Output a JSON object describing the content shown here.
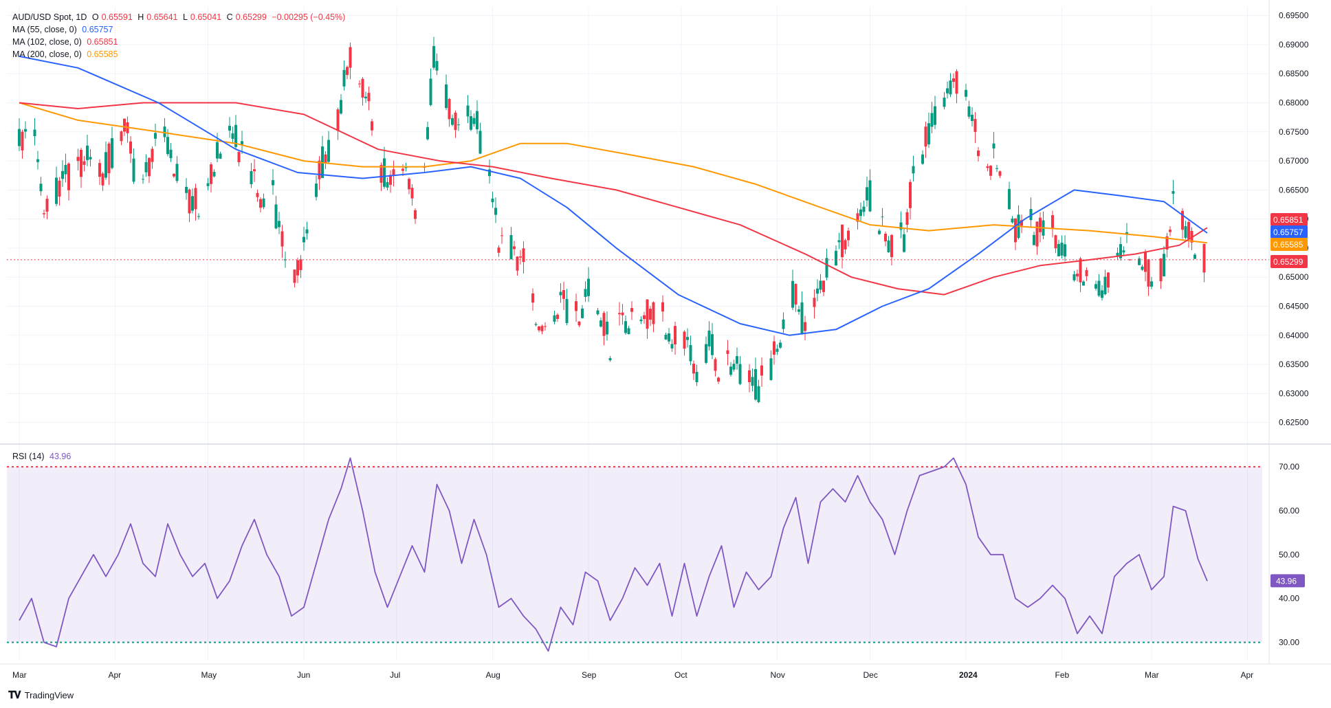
{
  "header": {
    "symbol": "AUD/USD Spot, 1D",
    "open_label": "O",
    "open": "0.65591",
    "high_label": "H",
    "high": "0.65641",
    "low_label": "L",
    "low": "0.65041",
    "close_label": "C",
    "close": "0.65299",
    "change": "−0.00295 (−0.45%)"
  },
  "indicators": {
    "ma55": {
      "label": "MA (55, close, 0)",
      "value": "0.65757",
      "color": "#2962ff"
    },
    "ma102": {
      "label": "MA (102, close, 0)",
      "value": "0.65851",
      "color": "#f23645"
    },
    "ma200": {
      "label": "MA (200, close, 0)",
      "value": "0.65585",
      "color": "#ff9800"
    },
    "rsi": {
      "label": "RSI (14)",
      "value": "43.96",
      "color": "#7e57c2"
    }
  },
  "brand": {
    "name": "TradingView"
  },
  "colors": {
    "up": "#089981",
    "down": "#f23645",
    "grid": "#f0f3fa",
    "axis_text": "#131722"
  },
  "chart_data": [
    {
      "type": "candlestick",
      "title": "AUD/USD Spot, 1D",
      "ylim": [
        0.622,
        0.6965
      ],
      "y_ticks": [
        "0.69500",
        "0.69000",
        "0.68500",
        "0.68000",
        "0.67500",
        "0.67000",
        "0.66500",
        "0.66000",
        "0.65500",
        "0.65000",
        "0.64500",
        "0.64000",
        "0.63500",
        "0.63000",
        "0.62500"
      ],
      "x_ticks": [
        "Mar",
        "Apr",
        "May",
        "Jun",
        "Jul",
        "Aug",
        "Sep",
        "Oct",
        "Nov",
        "Dec",
        "2024",
        "Feb",
        "Mar",
        "Apr"
      ],
      "price_labels": [
        {
          "name": "MA 102",
          "value": "0.65851",
          "color": "#f23645"
        },
        {
          "name": "MA 55",
          "value": "0.65757",
          "color": "#2962ff"
        },
        {
          "name": "MA 200",
          "value": "0.65585",
          "color": "#ff9800"
        },
        {
          "name": "Last",
          "value": "0.65299",
          "color": "#f23645"
        }
      ],
      "close_path": [
        [
          "2023-03-01",
          0.673
        ],
        [
          "2023-03-05",
          0.676
        ],
        [
          "2023-03-09",
          0.662
        ],
        [
          "2023-03-14",
          0.665
        ],
        [
          "2023-03-18",
          0.668
        ],
        [
          "2023-03-23",
          0.67
        ],
        [
          "2023-03-28",
          0.668
        ],
        [
          "2023-04-01",
          0.672
        ],
        [
          "2023-04-04",
          0.678
        ],
        [
          "2023-04-08",
          0.665
        ],
        [
          "2023-04-12",
          0.67
        ],
        [
          "2023-04-16",
          0.676
        ],
        [
          "2023-04-20",
          0.67
        ],
        [
          "2023-04-24",
          0.664
        ],
        [
          "2023-04-28",
          0.662
        ],
        [
          "2023-05-02",
          0.668
        ],
        [
          "2023-05-06",
          0.675
        ],
        [
          "2023-05-10",
          0.674
        ],
        [
          "2023-05-14",
          0.668
        ],
        [
          "2023-05-18",
          0.664
        ],
        [
          "2023-05-22",
          0.664
        ],
        [
          "2023-05-26",
          0.652
        ],
        [
          "2023-05-31",
          0.652
        ],
        [
          "2023-06-03",
          0.66
        ],
        [
          "2023-06-07",
          0.67
        ],
        [
          "2023-06-11",
          0.674
        ],
        [
          "2023-06-15",
          0.687
        ],
        [
          "2023-06-18",
          0.686
        ],
        [
          "2023-06-22",
          0.68
        ],
        [
          "2023-06-26",
          0.668
        ],
        [
          "2023-06-30",
          0.666
        ],
        [
          "2023-07-04",
          0.67
        ],
        [
          "2023-07-07",
          0.662
        ],
        [
          "2023-07-10",
          0.67
        ],
        [
          "2023-07-13",
          0.688
        ],
        [
          "2023-07-17",
          0.681
        ],
        [
          "2023-07-21",
          0.676
        ],
        [
          "2023-07-26",
          0.678
        ],
        [
          "2023-07-30",
          0.67
        ],
        [
          "2023-08-03",
          0.656
        ],
        [
          "2023-08-07",
          0.656
        ],
        [
          "2023-08-11",
          0.652
        ],
        [
          "2023-08-15",
          0.644
        ],
        [
          "2023-08-19",
          0.642
        ],
        [
          "2023-08-23",
          0.646
        ],
        [
          "2023-08-27",
          0.642
        ],
        [
          "2023-08-31",
          0.647
        ],
        [
          "2023-09-04",
          0.646
        ],
        [
          "2023-09-08",
          0.638
        ],
        [
          "2023-09-12",
          0.642
        ],
        [
          "2023-09-16",
          0.644
        ],
        [
          "2023-09-20",
          0.644
        ],
        [
          "2023-09-24",
          0.645
        ],
        [
          "2023-09-28",
          0.639
        ],
        [
          "2023-10-02",
          0.64
        ],
        [
          "2023-10-06",
          0.633
        ],
        [
          "2023-10-10",
          0.639
        ],
        [
          "2023-10-14",
          0.633
        ],
        [
          "2023-10-18",
          0.636
        ],
        [
          "2023-10-22",
          0.632
        ],
        [
          "2023-10-26",
          0.631
        ],
        [
          "2023-10-30",
          0.635
        ],
        [
          "2023-11-03",
          0.642
        ],
        [
          "2023-11-07",
          0.648
        ],
        [
          "2023-11-11",
          0.638
        ],
        [
          "2023-11-15",
          0.649
        ],
        [
          "2023-11-19",
          0.654
        ],
        [
          "2023-11-23",
          0.657
        ],
        [
          "2023-11-27",
          0.66
        ],
        [
          "2023-12-01",
          0.664
        ],
        [
          "2023-12-04",
          0.66
        ],
        [
          "2023-12-08",
          0.656
        ],
        [
          "2023-12-12",
          0.657
        ],
        [
          "2023-12-16",
          0.67
        ],
        [
          "2023-12-20",
          0.674
        ],
        [
          "2023-12-24",
          0.68
        ],
        [
          "2023-12-28",
          0.684
        ],
        [
          "2024-01-01",
          0.682
        ],
        [
          "2024-01-05",
          0.672
        ],
        [
          "2024-01-09",
          0.67
        ],
        [
          "2024-01-13",
          0.67
        ],
        [
          "2024-01-17",
          0.659
        ],
        [
          "2024-01-21",
          0.659
        ],
        [
          "2024-01-25",
          0.658
        ],
        [
          "2024-01-29",
          0.659
        ],
        [
          "2024-02-02",
          0.654
        ],
        [
          "2024-02-06",
          0.651
        ],
        [
          "2024-02-10",
          0.652
        ],
        [
          "2024-02-14",
          0.648
        ],
        [
          "2024-02-18",
          0.654
        ],
        [
          "2024-02-22",
          0.656
        ],
        [
          "2024-02-26",
          0.655
        ],
        [
          "2024-03-01",
          0.65
        ],
        [
          "2024-03-05",
          0.653
        ],
        [
          "2024-03-08",
          0.662
        ],
        [
          "2024-03-12",
          0.659
        ],
        [
          "2024-03-15",
          0.656
        ],
        [
          "2024-03-19",
          0.653
        ]
      ],
      "ma55": [
        [
          "2023-03-01",
          0.688
        ],
        [
          "2023-03-20",
          0.686
        ],
        [
          "2023-04-15",
          0.68
        ],
        [
          "2023-05-10",
          0.672
        ],
        [
          "2023-05-30",
          0.668
        ],
        [
          "2023-06-20",
          0.667
        ],
        [
          "2023-07-10",
          0.668
        ],
        [
          "2023-07-25",
          0.669
        ],
        [
          "2023-08-10",
          0.667
        ],
        [
          "2023-08-25",
          0.662
        ],
        [
          "2023-09-10",
          0.655
        ],
        [
          "2023-09-30",
          0.647
        ],
        [
          "2023-10-20",
          0.642
        ],
        [
          "2023-11-05",
          0.64
        ],
        [
          "2023-11-20",
          0.641
        ],
        [
          "2023-12-05",
          0.645
        ],
        [
          "2023-12-20",
          0.648
        ],
        [
          "2024-01-05",
          0.654
        ],
        [
          "2024-01-20",
          0.66
        ],
        [
          "2024-02-05",
          0.665
        ],
        [
          "2024-02-20",
          0.664
        ],
        [
          "2024-03-05",
          0.663
        ],
        [
          "2024-03-19",
          0.6576
        ]
      ],
      "ma102": [
        [
          "2023-03-01",
          0.68
        ],
        [
          "2023-03-20",
          0.679
        ],
        [
          "2023-04-10",
          0.68
        ],
        [
          "2023-05-10",
          0.68
        ],
        [
          "2023-06-01",
          0.678
        ],
        [
          "2023-06-25",
          0.672
        ],
        [
          "2023-07-15",
          0.67
        ],
        [
          "2023-08-01",
          0.669
        ],
        [
          "2023-08-20",
          0.667
        ],
        [
          "2023-09-10",
          0.665
        ],
        [
          "2023-09-30",
          0.662
        ],
        [
          "2023-10-20",
          0.659
        ],
        [
          "2023-11-10",
          0.654
        ],
        [
          "2023-11-25",
          0.65
        ],
        [
          "2023-12-10",
          0.648
        ],
        [
          "2023-12-25",
          0.647
        ],
        [
          "2024-01-10",
          0.65
        ],
        [
          "2024-01-25",
          0.652
        ],
        [
          "2024-02-10",
          0.653
        ],
        [
          "2024-02-25",
          0.654
        ],
        [
          "2024-03-10",
          0.6555
        ],
        [
          "2024-03-19",
          0.6585
        ]
      ],
      "ma200": [
        [
          "2023-03-01",
          0.68
        ],
        [
          "2023-03-20",
          0.677
        ],
        [
          "2023-04-15",
          0.675
        ],
        [
          "2023-05-10",
          0.673
        ],
        [
          "2023-06-01",
          0.67
        ],
        [
          "2023-06-20",
          0.669
        ],
        [
          "2023-07-10",
          0.669
        ],
        [
          "2023-07-25",
          0.67
        ],
        [
          "2023-08-10",
          0.673
        ],
        [
          "2023-08-25",
          0.673
        ],
        [
          "2023-09-15",
          0.671
        ],
        [
          "2023-10-05",
          0.669
        ],
        [
          "2023-10-25",
          0.666
        ],
        [
          "2023-11-15",
          0.662
        ],
        [
          "2023-12-01",
          0.659
        ],
        [
          "2023-12-20",
          0.658
        ],
        [
          "2024-01-10",
          0.659
        ],
        [
          "2024-01-25",
          0.6585
        ],
        [
          "2024-02-10",
          0.658
        ],
        [
          "2024-03-01",
          0.657
        ],
        [
          "2024-03-19",
          0.6559
        ]
      ]
    },
    {
      "type": "line",
      "title": "RSI (14)",
      "ylim": [
        26,
        73
      ],
      "y_ticks": [
        "70.00",
        "60.00",
        "50.00",
        "40.00",
        "30.00"
      ],
      "levels": [
        70,
        30
      ],
      "series": [
        {
          "name": "RSI (14)",
          "points": [
            [
              "2023-03-01",
              35
            ],
            [
              "2023-03-05",
              40
            ],
            [
              "2023-03-09",
              30
            ],
            [
              "2023-03-13",
              29
            ],
            [
              "2023-03-17",
              40
            ],
            [
              "2023-03-21",
              45
            ],
            [
              "2023-03-25",
              50
            ],
            [
              "2023-03-29",
              45
            ],
            [
              "2023-04-02",
              50
            ],
            [
              "2023-04-06",
              57
            ],
            [
              "2023-04-10",
              48
            ],
            [
              "2023-04-14",
              45
            ],
            [
              "2023-04-18",
              57
            ],
            [
              "2023-04-22",
              50
            ],
            [
              "2023-04-26",
              45
            ],
            [
              "2023-04-30",
              48
            ],
            [
              "2023-05-04",
              40
            ],
            [
              "2023-05-08",
              44
            ],
            [
              "2023-05-12",
              52
            ],
            [
              "2023-05-16",
              58
            ],
            [
              "2023-05-20",
              50
            ],
            [
              "2023-05-24",
              45
            ],
            [
              "2023-05-28",
              36
            ],
            [
              "2023-06-01",
              38
            ],
            [
              "2023-06-05",
              48
            ],
            [
              "2023-06-09",
              58
            ],
            [
              "2023-06-13",
              65
            ],
            [
              "2023-06-16",
              72
            ],
            [
              "2023-06-20",
              60
            ],
            [
              "2023-06-24",
              46
            ],
            [
              "2023-06-28",
              38
            ],
            [
              "2023-07-02",
              45
            ],
            [
              "2023-07-06",
              52
            ],
            [
              "2023-07-10",
              46
            ],
            [
              "2023-07-14",
              66
            ],
            [
              "2023-07-18",
              60
            ],
            [
              "2023-07-22",
              48
            ],
            [
              "2023-07-26",
              58
            ],
            [
              "2023-07-30",
              50
            ],
            [
              "2023-08-03",
              38
            ],
            [
              "2023-08-07",
              40
            ],
            [
              "2023-08-11",
              36
            ],
            [
              "2023-08-15",
              33
            ],
            [
              "2023-08-19",
              28
            ],
            [
              "2023-08-23",
              38
            ],
            [
              "2023-08-27",
              34
            ],
            [
              "2023-08-31",
              46
            ],
            [
              "2023-09-04",
              44
            ],
            [
              "2023-09-08",
              35
            ],
            [
              "2023-09-12",
              40
            ],
            [
              "2023-09-16",
              47
            ],
            [
              "2023-09-20",
              43
            ],
            [
              "2023-09-24",
              48
            ],
            [
              "2023-09-28",
              36
            ],
            [
              "2023-10-02",
              48
            ],
            [
              "2023-10-06",
              36
            ],
            [
              "2023-10-10",
              45
            ],
            [
              "2023-10-14",
              52
            ],
            [
              "2023-10-18",
              38
            ],
            [
              "2023-10-22",
              46
            ],
            [
              "2023-10-26",
              42
            ],
            [
              "2023-10-30",
              45
            ],
            [
              "2023-11-03",
              56
            ],
            [
              "2023-11-07",
              63
            ],
            [
              "2023-11-11",
              48
            ],
            [
              "2023-11-15",
              62
            ],
            [
              "2023-11-19",
              65
            ],
            [
              "2023-11-23",
              62
            ],
            [
              "2023-11-27",
              68
            ],
            [
              "2023-12-01",
              62
            ],
            [
              "2023-12-05",
              58
            ],
            [
              "2023-12-09",
              50
            ],
            [
              "2023-12-13",
              60
            ],
            [
              "2023-12-17",
              68
            ],
            [
              "2023-12-21",
              69
            ],
            [
              "2023-12-25",
              70
            ],
            [
              "2023-12-28",
              72
            ],
            [
              "2024-01-01",
              66
            ],
            [
              "2024-01-05",
              54
            ],
            [
              "2024-01-09",
              50
            ],
            [
              "2024-01-13",
              50
            ],
            [
              "2024-01-17",
              40
            ],
            [
              "2024-01-21",
              38
            ],
            [
              "2024-01-25",
              40
            ],
            [
              "2024-01-29",
              43
            ],
            [
              "2024-02-02",
              40
            ],
            [
              "2024-02-06",
              32
            ],
            [
              "2024-02-10",
              36
            ],
            [
              "2024-02-14",
              32
            ],
            [
              "2024-02-18",
              45
            ],
            [
              "2024-02-22",
              48
            ],
            [
              "2024-02-26",
              50
            ],
            [
              "2024-03-01",
              42
            ],
            [
              "2024-03-05",
              45
            ],
            [
              "2024-03-08",
              61
            ],
            [
              "2024-03-12",
              60
            ],
            [
              "2024-03-16",
              49
            ],
            [
              "2024-03-19",
              43.96
            ]
          ]
        }
      ]
    }
  ]
}
